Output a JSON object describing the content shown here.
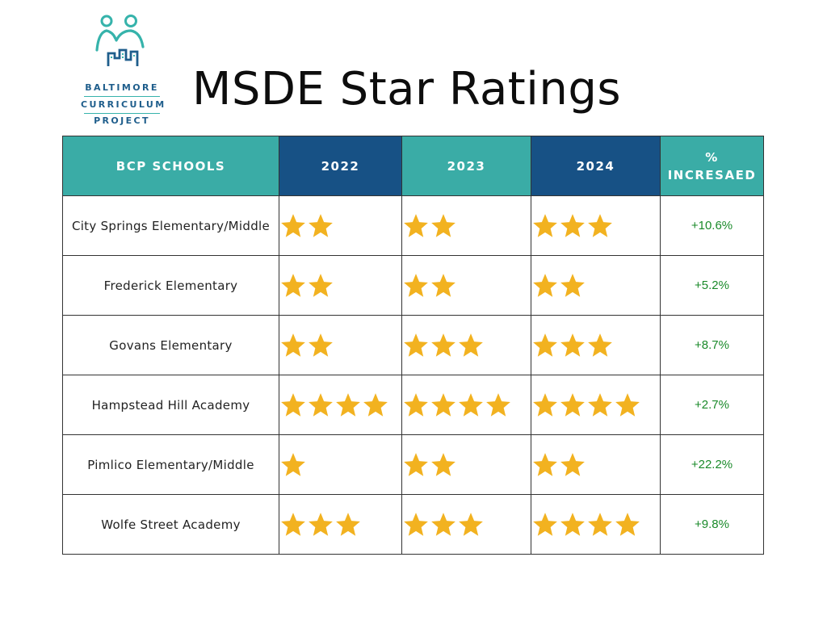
{
  "logo": {
    "line1": "BALTIMORE",
    "line2": "CURRICULUM",
    "line3": "PROJECT",
    "colors": {
      "teal": "#36b3ab",
      "navy": "#1f5e8c"
    }
  },
  "title": "MSDE Star Ratings",
  "table": {
    "headers": {
      "school": "BCP SCHOOLS",
      "y2022": "2022",
      "y2023": "2023",
      "y2024": "2024",
      "pct_line1": "%",
      "pct_line2": "INCRESAED"
    },
    "header_colors": {
      "teal": "#3aaca6",
      "navy": "#175185"
    },
    "star_color": "#f2b220",
    "pct_color": "#1a8a2a",
    "rows": [
      {
        "school": "City Springs Elementary/Middle",
        "stars": [
          2,
          2,
          3
        ],
        "pct": "+10.6%"
      },
      {
        "school": "Frederick Elementary",
        "stars": [
          2,
          2,
          2
        ],
        "pct": "+5.2%"
      },
      {
        "school": "Govans Elementary",
        "stars": [
          2,
          3,
          3
        ],
        "pct": "+8.7%"
      },
      {
        "school": "Hampstead Hill Academy",
        "stars": [
          4,
          4,
          4
        ],
        "pct": "+2.7%"
      },
      {
        "school": "Pimlico Elementary/Middle",
        "stars": [
          1,
          2,
          2
        ],
        "pct": "+22.2%"
      },
      {
        "school": "Wolfe Street Academy",
        "stars": [
          3,
          3,
          4
        ],
        "pct": "+9.8%"
      }
    ]
  }
}
